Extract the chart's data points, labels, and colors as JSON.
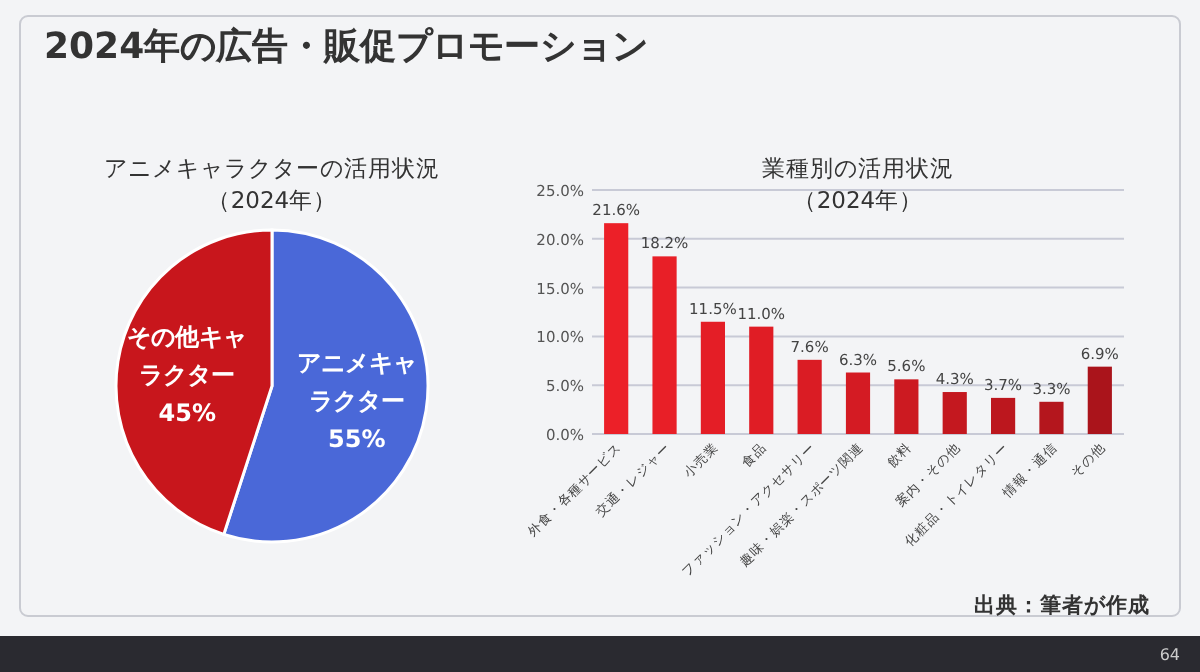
{
  "chart_data": [
    {
      "type": "pie",
      "title": "アニメキャラクターの活用状況",
      "subtitle": "（2024年）",
      "categories": [
        "アニメキャラクター",
        "その他キャラクター"
      ],
      "values": [
        55,
        45
      ],
      "value_labels": [
        "55%",
        "45%"
      ],
      "colors": [
        "#4a68d8",
        "#c8161c"
      ],
      "annotations": [
        "2024年の広告・販促プロモーション"
      ]
    },
    {
      "type": "bar",
      "title": "業種別の活用状況",
      "subtitle": "（2024年）",
      "categories": [
        "外食・各種サービス",
        "交通・レジャー",
        "小売業",
        "食品",
        "ファッション・アクセサリー",
        "趣味・娯楽・スポーツ関連",
        "飲料",
        "案内・その他",
        "化粧品・トイレタリー",
        "情報・通信",
        "その他"
      ],
      "values": [
        21.6,
        18.2,
        11.5,
        11.0,
        7.6,
        6.3,
        5.6,
        4.3,
        3.7,
        3.3,
        6.9
      ],
      "value_labels": [
        "21.6%",
        "18.2%",
        "11.5%",
        "11.0%",
        "7.6%",
        "6.3%",
        "5.6%",
        "4.3%",
        "3.7%",
        "3.3%",
        "6.9%"
      ],
      "colors": [
        "#ec2028",
        "#e81f27",
        "#e41e26",
        "#e01d25",
        "#da1c24",
        "#d41b23",
        "#cc1a21",
        "#c4181f",
        "#bc171e",
        "#b4161d",
        "#aa141b"
      ],
      "ylim": [
        0,
        25
      ],
      "yticks": [
        {
          "value": 0,
          "label": "0.0%"
        },
        {
          "value": 5,
          "label": "5.0%"
        },
        {
          "value": 10,
          "label": "10.0%"
        },
        {
          "value": 15,
          "label": "15.0%"
        },
        {
          "value": 20,
          "label": "20.0%"
        },
        {
          "value": 25,
          "label": "25.0%"
        }
      ],
      "grid": "y",
      "annotations": [
        "出典：筆者が作成",
        "64"
      ]
    }
  ]
}
